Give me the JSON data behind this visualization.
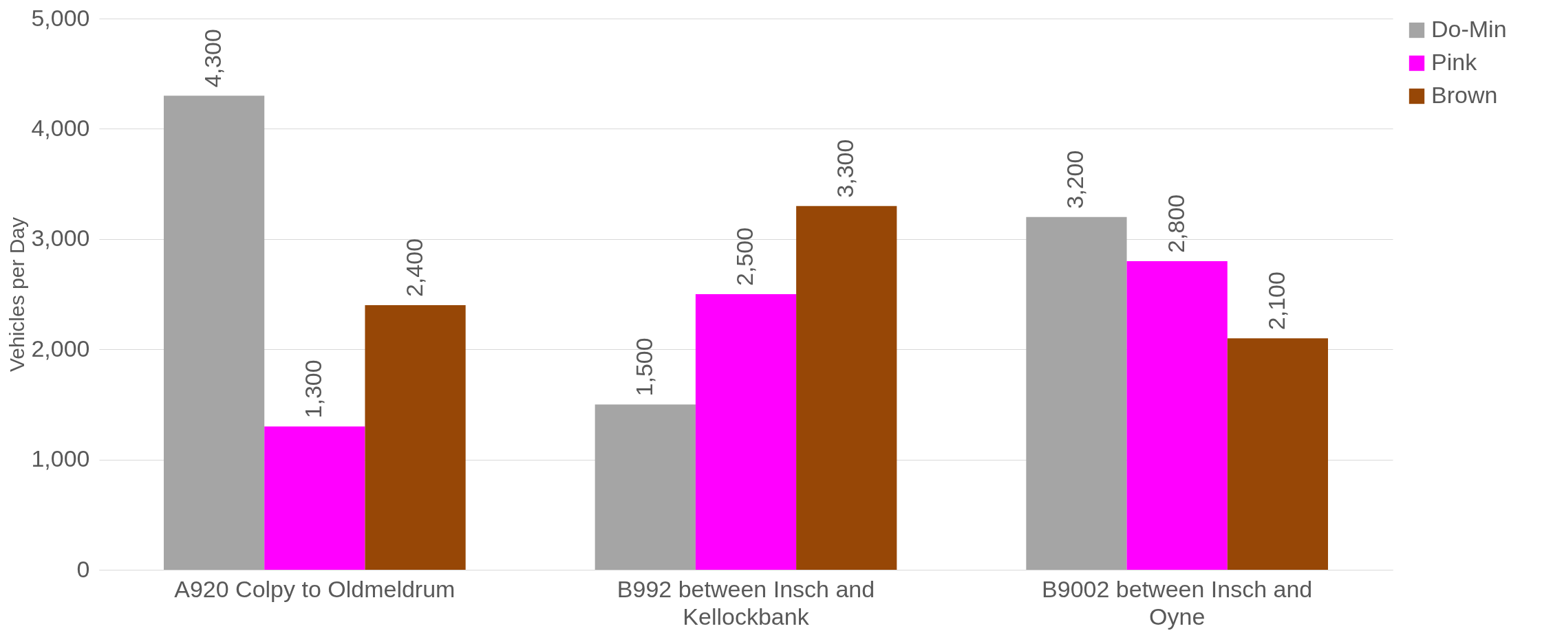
{
  "chart_data": {
    "type": "bar",
    "ylabel": "Vehicles per Day",
    "categories": [
      "A920 Colpy to Oldmeldrum",
      "B992 between Insch and Kellockbank",
      "B9002 between Insch and Oyne"
    ],
    "series": [
      {
        "name": "Do-Min",
        "color": "#a5a5a5",
        "values": [
          4300,
          1500,
          3200
        ],
        "value_labels": [
          "4,300",
          "1,500",
          "3,200"
        ]
      },
      {
        "name": "Pink",
        "color": "#ff00ff",
        "values": [
          1300,
          2500,
          2800
        ],
        "value_labels": [
          "1,300",
          "2,500",
          "2,800"
        ]
      },
      {
        "name": "Brown",
        "color": "#974706",
        "values": [
          2400,
          3300,
          2100
        ],
        "value_labels": [
          "2,400",
          "3,300",
          "2,100"
        ]
      }
    ],
    "ylim": [
      0,
      5000
    ],
    "yticks": [
      0,
      {
        "value": 1000,
        "label": "1,000"
      },
      {
        "value": 2000,
        "label": "2,000"
      },
      {
        "value": 3000,
        "label": "3,000"
      },
      {
        "value": 4000,
        "label": "4,000"
      },
      {
        "value": 5000,
        "label": "5,000"
      }
    ],
    "grid": "y",
    "legend": "top right"
  }
}
